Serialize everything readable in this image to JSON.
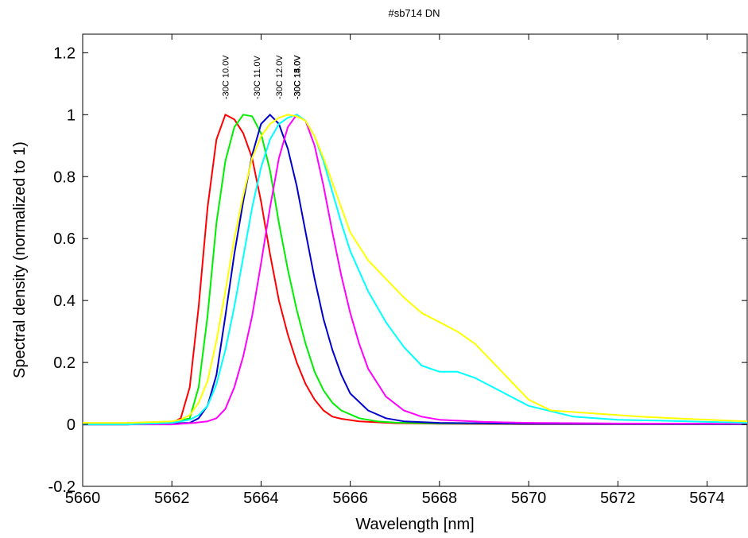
{
  "chart_data": {
    "type": "line",
    "title": "#sb714 DN",
    "xlabel": "Wavelength [nm]",
    "ylabel": "Spectral density (normalized to 1)",
    "xlim": [
      5660,
      5674.9
    ],
    "ylim": [
      -0.2,
      1.26
    ],
    "xticks": [
      5660,
      5662,
      5664,
      5666,
      5668,
      5670,
      5672,
      5674
    ],
    "yticks": [
      -0.2,
      0,
      0.2,
      0.4,
      0.6,
      0.8,
      1,
      1.2
    ],
    "xtick_labels": [
      "5660",
      "5662",
      "5664",
      "5666",
      "5668",
      "5670",
      "5672",
      "5674"
    ],
    "ytick_labels": [
      "-0.2",
      "0",
      "0.2",
      "0.4",
      "0.6",
      "0.8",
      "1",
      "1.2"
    ],
    "grid": false,
    "annotations": [
      {
        "text": "-30C 10.0V",
        "x": 5663.2
      },
      {
        "text": "-30C 11.0V",
        "x": 5663.9
      },
      {
        "text": "-30C 12.0V",
        "x": 5664.4
      },
      {
        "text": "-30C 13.0V",
        "x": 5664.8
      },
      {
        "text": "-30C 14.0V",
        "x": 5664.8
      },
      {
        "text": "-30C 15.0V",
        "x": 5664.8
      }
    ],
    "series": [
      {
        "color": "#ff0000",
        "x": [
          5660,
          5661,
          5662,
          5662.2,
          5662.4,
          5662.6,
          5662.8,
          5663.0,
          5663.2,
          5663.4,
          5663.6,
          5663.8,
          5664.0,
          5664.2,
          5664.4,
          5664.6,
          5664.8,
          5665.0,
          5665.2,
          5665.4,
          5665.6,
          5665.8,
          5666.2,
          5667,
          5668,
          5670,
          5674.9
        ],
        "y": [
          0,
          0,
          0.005,
          0.02,
          0.12,
          0.38,
          0.7,
          0.92,
          1.0,
          0.985,
          0.94,
          0.86,
          0.72,
          0.55,
          0.4,
          0.29,
          0.2,
          0.13,
          0.08,
          0.045,
          0.025,
          0.018,
          0.01,
          0.004,
          0.002,
          0.001,
          0.001
        ]
      },
      {
        "color": "#00ee00",
        "x": [
          5660,
          5661,
          5662,
          5662.4,
          5662.6,
          5662.8,
          5663.0,
          5663.2,
          5663.4,
          5663.6,
          5663.8,
          5664.0,
          5664.2,
          5664.4,
          5664.6,
          5664.8,
          5665.0,
          5665.2,
          5665.4,
          5665.6,
          5665.8,
          5666.2,
          5666.6,
          5667,
          5668,
          5670,
          5674.9
        ],
        "y": [
          0,
          0,
          0.005,
          0.02,
          0.12,
          0.35,
          0.65,
          0.85,
          0.96,
          1.0,
          0.995,
          0.94,
          0.82,
          0.65,
          0.5,
          0.37,
          0.26,
          0.17,
          0.11,
          0.07,
          0.045,
          0.02,
          0.01,
          0.006,
          0.003,
          0.002,
          0.001
        ]
      },
      {
        "color": "#0000cc",
        "x": [
          5660,
          5661,
          5662,
          5662.4,
          5662.6,
          5662.8,
          5663.0,
          5663.2,
          5663.4,
          5663.6,
          5663.8,
          5664.0,
          5664.2,
          5664.4,
          5664.6,
          5664.8,
          5665.0,
          5665.2,
          5665.4,
          5665.6,
          5665.8,
          5666.0,
          5666.4,
          5666.8,
          5667.2,
          5668,
          5670,
          5674.9
        ],
        "y": [
          0,
          0,
          0.003,
          0.005,
          0.02,
          0.06,
          0.16,
          0.35,
          0.55,
          0.72,
          0.87,
          0.97,
          1.0,
          0.97,
          0.89,
          0.77,
          0.62,
          0.47,
          0.34,
          0.24,
          0.16,
          0.1,
          0.045,
          0.02,
          0.01,
          0.005,
          0.002,
          0.001
        ]
      },
      {
        "color": "#ff00ff",
        "x": [
          5660,
          5661,
          5662,
          5662.5,
          5662.8,
          5663.0,
          5663.2,
          5663.4,
          5663.6,
          5663.8,
          5664.0,
          5664.2,
          5664.4,
          5664.6,
          5664.8,
          5665.0,
          5665.2,
          5665.4,
          5665.6,
          5665.8,
          5666.0,
          5666.2,
          5666.4,
          5666.8,
          5667.2,
          5667.6,
          5668,
          5669,
          5670,
          5672,
          5674.9
        ],
        "y": [
          0,
          0,
          0,
          0.005,
          0.01,
          0.02,
          0.05,
          0.12,
          0.22,
          0.35,
          0.52,
          0.7,
          0.86,
          0.96,
          1.0,
          0.98,
          0.9,
          0.77,
          0.62,
          0.48,
          0.36,
          0.26,
          0.18,
          0.09,
          0.045,
          0.025,
          0.015,
          0.008,
          0.005,
          0.003,
          0.002
        ]
      },
      {
        "color": "#00ffff",
        "x": [
          5660,
          5661,
          5662,
          5662.4,
          5662.6,
          5662.8,
          5663.0,
          5663.2,
          5663.4,
          5663.6,
          5663.8,
          5664.0,
          5664.2,
          5664.4,
          5664.6,
          5664.8,
          5665.0,
          5665.2,
          5665.4,
          5665.6,
          5665.8,
          5666.0,
          5666.4,
          5666.8,
          5667.2,
          5667.6,
          5668.0,
          5668.4,
          5668.8,
          5669.2,
          5669.6,
          5670,
          5671,
          5672,
          5673,
          5674,
          5674.9
        ],
        "y": [
          0,
          0,
          0.005,
          0.015,
          0.03,
          0.06,
          0.13,
          0.24,
          0.38,
          0.54,
          0.7,
          0.83,
          0.92,
          0.97,
          0.99,
          1.0,
          0.98,
          0.93,
          0.85,
          0.75,
          0.65,
          0.56,
          0.43,
          0.33,
          0.25,
          0.19,
          0.17,
          0.17,
          0.15,
          0.12,
          0.09,
          0.06,
          0.025,
          0.015,
          0.012,
          0.008,
          0.005
        ]
      },
      {
        "color": "#ffff00",
        "x": [
          5660,
          5661,
          5662,
          5662.2,
          5662.4,
          5662.6,
          5662.8,
          5663.0,
          5663.2,
          5663.4,
          5663.6,
          5663.8,
          5664.0,
          5664.2,
          5664.4,
          5664.6,
          5664.8,
          5665.0,
          5665.2,
          5665.4,
          5665.6,
          5665.8,
          5666.0,
          5666.4,
          5666.8,
          5667.2,
          5667.6,
          5668.0,
          5668.4,
          5668.8,
          5669.2,
          5669.6,
          5670,
          5670.5,
          5671.5,
          5672.5,
          5673.5,
          5674.9
        ],
        "y": [
          0.005,
          0.005,
          0.01,
          0.015,
          0.03,
          0.07,
          0.14,
          0.27,
          0.43,
          0.6,
          0.74,
          0.86,
          0.93,
          0.97,
          0.99,
          1.0,
          0.995,
          0.98,
          0.93,
          0.86,
          0.78,
          0.7,
          0.62,
          0.53,
          0.47,
          0.41,
          0.36,
          0.33,
          0.3,
          0.26,
          0.2,
          0.14,
          0.08,
          0.045,
          0.035,
          0.025,
          0.018,
          0.01
        ]
      }
    ]
  }
}
